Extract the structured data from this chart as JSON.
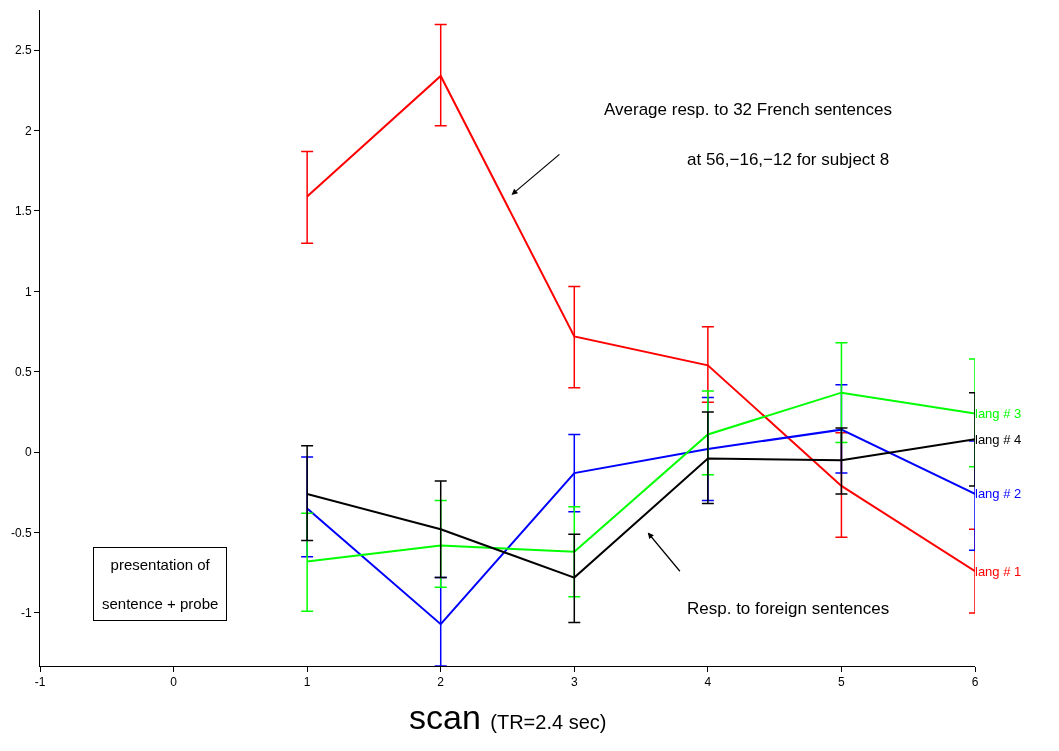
{
  "chart_data": {
    "type": "line",
    "x": [
      1,
      2,
      3,
      4,
      5,
      6
    ],
    "series": [
      {
        "name": "lang # 1",
        "color": "#ff0000",
        "values": [
          1.59,
          2.34,
          0.72,
          0.54,
          -0.21,
          -0.74
        ],
        "errors": [
          [
            1.3,
            1.87
          ],
          [
            2.03,
            2.66
          ],
          [
            0.4,
            1.03
          ],
          [
            0.31,
            0.78
          ],
          [
            -0.53,
            0.12
          ],
          [
            -1.0,
            -0.48
          ]
        ]
      },
      {
        "name": "lang # 2",
        "color": "#0000ff",
        "values": [
          -0.35,
          -1.07,
          -0.13,
          0.02,
          0.14,
          -0.26
        ],
        "errors": [
          [
            -0.65,
            -0.03
          ],
          [
            -1.33,
            -0.78
          ],
          [
            -0.37,
            0.11
          ],
          [
            -0.3,
            0.34
          ],
          [
            -0.13,
            0.42
          ],
          [
            -0.61,
            0.07
          ]
        ]
      },
      {
        "name": "lang # 3",
        "color": "#00ff00",
        "values": [
          -0.68,
          -0.58,
          -0.62,
          0.11,
          0.37,
          0.24
        ],
        "errors": [
          [
            -0.99,
            -0.38
          ],
          [
            -0.84,
            -0.3
          ],
          [
            -0.9,
            -0.34
          ],
          [
            -0.14,
            0.38
          ],
          [
            0.06,
            0.68
          ],
          [
            -0.09,
            0.58
          ]
        ]
      },
      {
        "name": "lang # 4",
        "color": "#000000",
        "values": [
          -0.26,
          -0.48,
          -0.78,
          -0.04,
          -0.05,
          0.08
        ],
        "errors": [
          [
            -0.55,
            0.04
          ],
          [
            -0.78,
            -0.18
          ],
          [
            -1.06,
            -0.51
          ],
          [
            -0.32,
            0.25
          ],
          [
            -0.26,
            0.15
          ],
          [
            -0.21,
            0.37
          ]
        ]
      }
    ],
    "xlabel": "scan (TR=2.4 sec)",
    "annotations": [
      "Average resp. to 32 French sentences",
      "at 56,−16,−12 for subject 8",
      "Resp. to foreign sentences",
      "presentation of sentence + probe"
    ],
    "xlim": [
      -1,
      6
    ],
    "ylim": [
      -1.33,
      2.75
    ],
    "xticks": [
      -1,
      0,
      1,
      2,
      3,
      4,
      5,
      6
    ],
    "yticks": [
      {
        "value": -1,
        "label": "-1"
      },
      {
        "value": -0.5,
        "label": "-0.5"
      },
      0,
      0.5,
      1,
      1.5,
      2,
      2.5
    ],
    "legend": false,
    "marker": "none",
    "line_style": "solid"
  }
}
